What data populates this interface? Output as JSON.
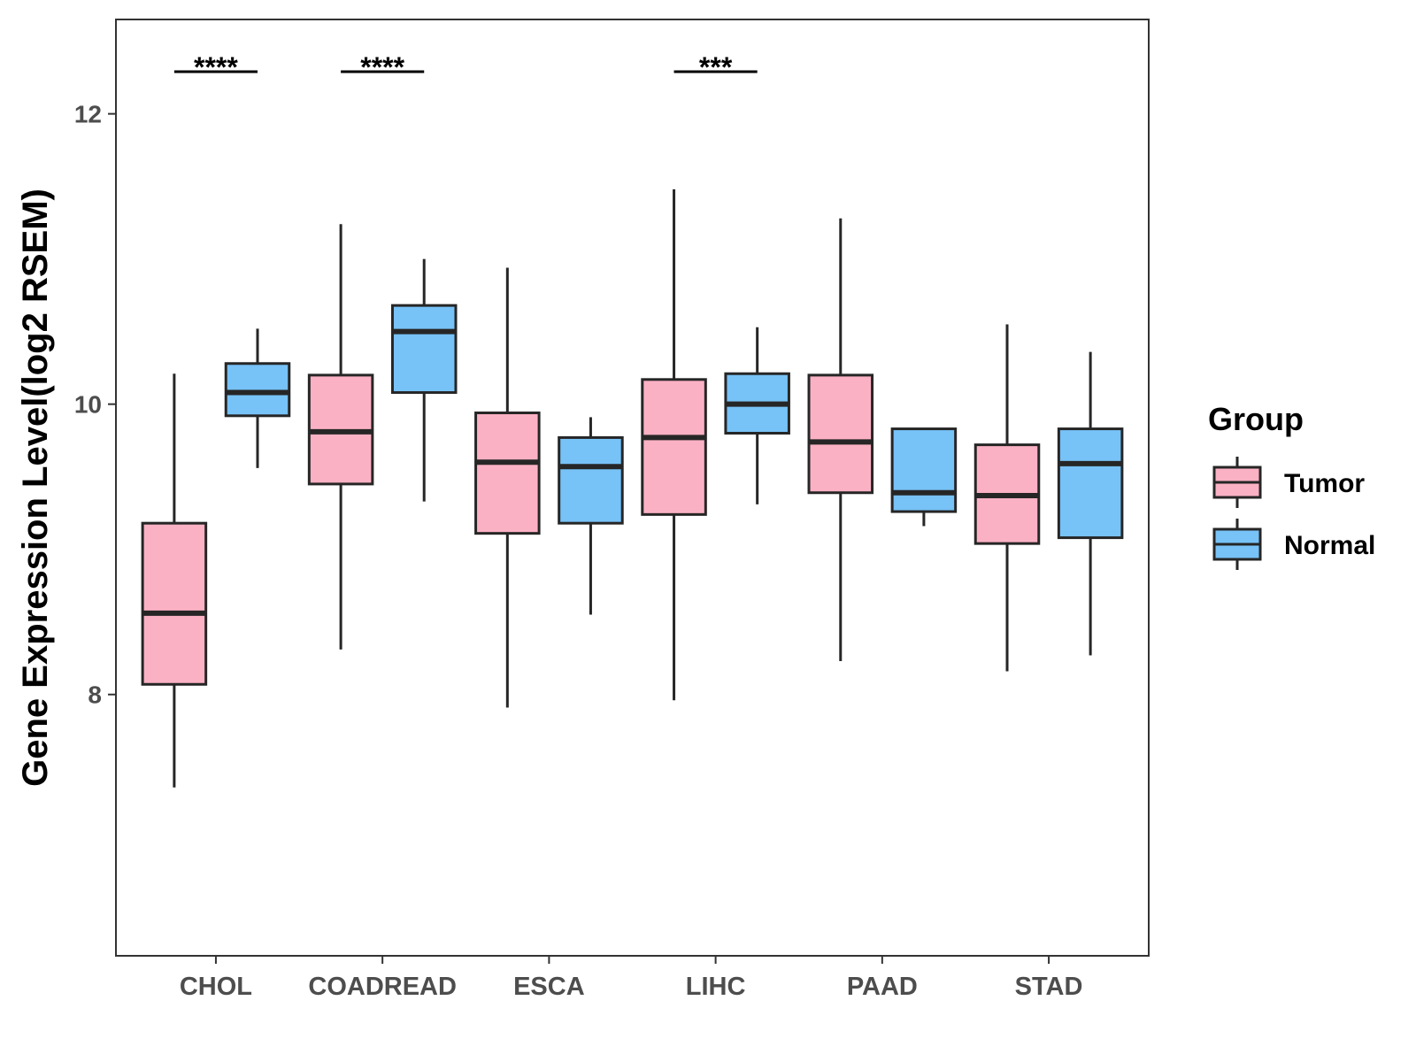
{
  "chart_data": {
    "type": "boxplot",
    "title": "",
    "xlabel": "",
    "ylabel": "Gene Expression Level(log2 RSEM)",
    "ylim": [
      6.2,
      12.65
    ],
    "yticks": [
      8,
      10,
      12
    ],
    "ytick_labels": [
      "8",
      "10",
      "12"
    ],
    "categories": [
      "CHOL",
      "COADREAD",
      "ESCA",
      "LIHC",
      "PAAD",
      "STAD"
    ],
    "legend": {
      "title": "Group",
      "position": "right"
    },
    "series": [
      {
        "name": "Tumor",
        "color": "#FBB1C4",
        "boxes": [
          {
            "category": "CHOL",
            "min": 7.36,
            "q1": 8.07,
            "median": 8.56,
            "q3": 9.18,
            "max": 10.21
          },
          {
            "category": "COADREAD",
            "min": 8.31,
            "q1": 9.45,
            "median": 9.81,
            "q3": 10.2,
            "max": 11.24
          },
          {
            "category": "ESCA",
            "min": 7.91,
            "q1": 9.11,
            "median": 9.6,
            "q3": 9.94,
            "max": 10.94
          },
          {
            "category": "LIHC",
            "min": 7.96,
            "q1": 9.24,
            "median": 9.77,
            "q3": 10.17,
            "max": 11.48
          },
          {
            "category": "PAAD",
            "min": 8.23,
            "q1": 9.39,
            "median": 9.74,
            "q3": 10.2,
            "max": 11.28
          },
          {
            "category": "STAD",
            "min": 8.16,
            "q1": 9.04,
            "median": 9.37,
            "q3": 9.72,
            "max": 10.55
          }
        ]
      },
      {
        "name": "Normal",
        "color": "#77C2F7",
        "boxes": [
          {
            "category": "CHOL",
            "min": 9.56,
            "q1": 9.92,
            "median": 10.08,
            "q3": 10.28,
            "max": 10.52
          },
          {
            "category": "COADREAD",
            "min": 9.33,
            "q1": 10.08,
            "median": 10.5,
            "q3": 10.68,
            "max": 11.0
          },
          {
            "category": "ESCA",
            "min": 8.55,
            "q1": 9.18,
            "median": 9.57,
            "q3": 9.77,
            "max": 9.91
          },
          {
            "category": "LIHC",
            "min": 9.31,
            "q1": 9.8,
            "median": 10.0,
            "q3": 10.21,
            "max": 10.53
          },
          {
            "category": "PAAD",
            "min": 9.16,
            "q1": 9.26,
            "median": 9.39,
            "q3": 9.83,
            "max": 9.83
          },
          {
            "category": "STAD",
            "min": 8.27,
            "q1": 9.08,
            "median": 9.59,
            "q3": 9.83,
            "max": 10.36
          }
        ]
      }
    ],
    "significance": [
      {
        "category": "CHOL",
        "label": "****",
        "y": 12.29
      },
      {
        "category": "COADREAD",
        "label": "****",
        "y": 12.29
      },
      {
        "category": "LIHC",
        "label": "***",
        "y": 12.29
      }
    ]
  }
}
